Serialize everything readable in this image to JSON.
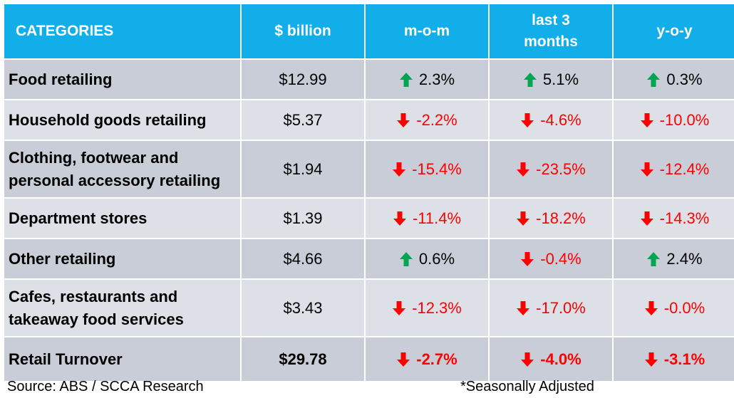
{
  "chart_data": {
    "type": "table",
    "columns": [
      "CATEGORIES",
      "$ billion",
      "m-o-m",
      "last 3\nmonths",
      "y-o-y"
    ],
    "rows": [
      {
        "category": "Food retailing",
        "billion": "$12.99",
        "mom": {
          "text": "2.3%",
          "dir": "up"
        },
        "l3m": {
          "text": "5.1%",
          "dir": "up"
        },
        "yoy": {
          "text": "0.3%",
          "dir": "up"
        }
      },
      {
        "category": "Household goods retailing",
        "billion": "$5.37",
        "mom": {
          "text": "-2.2%",
          "dir": "down"
        },
        "l3m": {
          "text": "-4.6%",
          "dir": "down"
        },
        "yoy": {
          "text": "-10.0%",
          "dir": "down"
        }
      },
      {
        "category": "Clothing, footwear and\npersonal accessory retailing",
        "billion": "$1.94",
        "mom": {
          "text": "-15.4%",
          "dir": "down"
        },
        "l3m": {
          "text": "-23.5%",
          "dir": "down"
        },
        "yoy": {
          "text": "-12.4%",
          "dir": "down"
        }
      },
      {
        "category": "Department stores",
        "billion": "$1.39",
        "mom": {
          "text": "-11.4%",
          "dir": "down"
        },
        "l3m": {
          "text": "-18.2%",
          "dir": "down"
        },
        "yoy": {
          "text": "-14.3%",
          "dir": "down"
        }
      },
      {
        "category": "Other retailing",
        "billion": "$4.66",
        "mom": {
          "text": "0.6%",
          "dir": "up"
        },
        "l3m": {
          "text": "-0.4%",
          "dir": "down"
        },
        "yoy": {
          "text": "2.4%",
          "dir": "up"
        }
      },
      {
        "category": "Cafes, restaurants and\ntakeaway food services",
        "billion": "$3.43",
        "mom": {
          "text": "-12.3%",
          "dir": "down"
        },
        "l3m": {
          "text": "-17.0%",
          "dir": "down"
        },
        "yoy": {
          "text": "-0.0%",
          "dir": "down"
        }
      },
      {
        "category": "Retail Turnover",
        "billion": "$29.78",
        "total": true,
        "mom": {
          "text": "-2.7%",
          "dir": "down"
        },
        "l3m": {
          "text": "-4.0%",
          "dir": "down"
        },
        "yoy": {
          "text": "-3.1%",
          "dir": "down"
        }
      }
    ],
    "colors": {
      "header": "#12aee9",
      "up": "#00a651",
      "down": "#ff0000",
      "row_light": "#dde0e6",
      "row_dark": "#c9cdd7"
    }
  },
  "footer": {
    "source": "Source: ABS / SCCA Research",
    "note": "*Seasonally Adjusted"
  }
}
